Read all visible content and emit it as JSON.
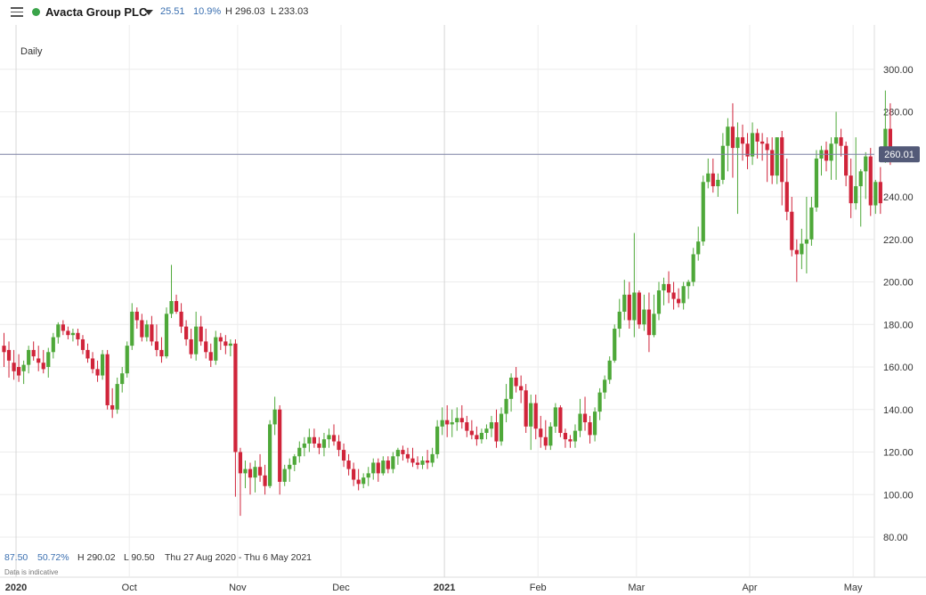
{
  "header": {
    "instrument": "Avacta Group PLC",
    "status_color": "#3aa44a",
    "change": "25.51",
    "change_pct": "10.9%",
    "high": "H 296.03",
    "low": "L 233.03"
  },
  "interval": "Daily",
  "footer": {
    "range_change": "87.50",
    "range_change_pct": "50.72%",
    "range_high": "H 290.02",
    "range_low": "L 90.50",
    "date_range": "Thu 27 Aug 2020 - Thu 6 May 2021",
    "disclaimer": "Data is indicative"
  },
  "colors": {
    "up": "#4ea839",
    "down": "#d0243a",
    "grid": "#ececec",
    "price_line": "#7f83a6",
    "price_tag": "#535a78",
    "axis_text": "#333333"
  },
  "chart_data": {
    "type": "candlestick",
    "title": "",
    "xlabel": "",
    "ylabel": "",
    "ylim": [
      70,
      307
    ],
    "y_ticks": [
      80,
      100,
      120,
      140,
      160,
      180,
      200,
      220,
      240,
      260,
      280,
      300
    ],
    "y_tick_labels": [
      "80.00",
      "100.00",
      "120.00",
      "140.00",
      "160.00",
      "180.00",
      "200.00",
      "220.00",
      "240.00",
      "260.00",
      "280.00",
      "300.00"
    ],
    "x_ticks": [
      {
        "label": "2020",
        "bold": true,
        "index": 1
      },
      {
        "label": "Oct",
        "bold": false,
        "index": 24
      },
      {
        "label": "Nov",
        "bold": false,
        "index": 46
      },
      {
        "label": "Dec",
        "bold": false,
        "index": 67
      },
      {
        "label": "2021",
        "bold": true,
        "index": 88
      },
      {
        "label": "Feb",
        "bold": false,
        "index": 107
      },
      {
        "label": "Mar",
        "bold": false,
        "index": 127
      },
      {
        "label": "Apr",
        "bold": false,
        "index": 150
      },
      {
        "label": "May",
        "bold": false,
        "index": 171
      }
    ],
    "current_price": 260.01,
    "current_price_label": "260.01",
    "candles": [
      [
        170,
        176,
        160,
        167
      ],
      [
        168,
        172,
        155,
        163
      ],
      [
        162,
        168,
        154,
        158
      ],
      [
        160,
        166,
        153,
        156
      ],
      [
        158,
        163,
        152,
        161
      ],
      [
        161,
        170,
        157,
        168
      ],
      [
        168,
        172,
        163,
        165
      ],
      [
        164,
        170,
        158,
        162
      ],
      [
        162,
        168,
        157,
        159
      ],
      [
        160,
        169,
        155,
        167
      ],
      [
        167,
        176,
        164,
        174
      ],
      [
        174,
        181,
        171,
        180
      ],
      [
        180,
        182,
        175,
        177
      ],
      [
        177,
        179,
        173,
        175
      ],
      [
        175,
        178,
        172,
        176
      ],
      [
        176,
        178,
        170,
        173
      ],
      [
        173,
        175,
        166,
        168
      ],
      [
        168,
        171,
        162,
        164
      ],
      [
        164,
        167,
        157,
        159
      ],
      [
        159,
        163,
        153,
        156
      ],
      [
        156,
        168,
        154,
        166
      ],
      [
        166,
        168,
        140,
        142
      ],
      [
        142,
        150,
        136,
        140
      ],
      [
        140,
        155,
        138,
        152
      ],
      [
        152,
        160,
        148,
        157
      ],
      [
        157,
        172,
        155,
        170
      ],
      [
        170,
        190,
        168,
        186
      ],
      [
        186,
        188,
        178,
        182
      ],
      [
        182,
        185,
        172,
        174
      ],
      [
        174,
        182,
        172,
        180
      ],
      [
        180,
        184,
        170,
        172
      ],
      [
        172,
        180,
        165,
        168
      ],
      [
        168,
        174,
        162,
        165
      ],
      [
        165,
        188,
        164,
        185
      ],
      [
        185,
        208,
        183,
        191
      ],
      [
        191,
        194,
        185,
        186
      ],
      [
        186,
        190,
        176,
        179
      ],
      [
        179,
        182,
        170,
        173
      ],
      [
        173,
        178,
        164,
        166
      ],
      [
        166,
        186,
        163,
        179
      ],
      [
        179,
        184,
        170,
        172
      ],
      [
        172,
        178,
        164,
        167
      ],
      [
        167,
        171,
        160,
        163
      ],
      [
        163,
        177,
        161,
        174
      ],
      [
        174,
        176,
        168,
        172
      ],
      [
        172,
        175,
        166,
        170
      ],
      [
        170,
        173,
        165,
        171
      ],
      [
        171,
        173,
        99,
        120
      ],
      [
        120,
        122,
        90,
        110
      ],
      [
        110,
        116,
        103,
        112
      ],
      [
        112,
        115,
        100,
        108
      ],
      [
        108,
        116,
        101,
        113
      ],
      [
        113,
        119,
        106,
        109
      ],
      [
        109,
        114,
        100,
        104
      ],
      [
        104,
        135,
        103,
        133
      ],
      [
        133,
        146,
        128,
        140
      ],
      [
        140,
        142,
        100,
        106
      ],
      [
        106,
        114,
        104,
        112
      ],
      [
        112,
        117,
        106,
        114
      ],
      [
        114,
        119,
        111,
        118
      ],
      [
        118,
        125,
        115,
        122
      ],
      [
        122,
        127,
        118,
        124
      ],
      [
        124,
        131,
        120,
        127
      ],
      [
        127,
        131,
        122,
        124
      ],
      [
        124,
        127,
        119,
        122
      ],
      [
        122,
        129,
        118,
        126
      ],
      [
        126,
        131,
        122,
        128
      ],
      [
        128,
        133,
        123,
        125
      ],
      [
        125,
        128,
        118,
        121
      ],
      [
        121,
        124,
        113,
        116
      ],
      [
        116,
        119,
        109,
        112
      ],
      [
        112,
        115,
        104,
        107
      ],
      [
        107,
        112,
        102,
        105
      ],
      [
        105,
        110,
        103,
        108
      ],
      [
        108,
        113,
        104,
        110
      ],
      [
        110,
        117,
        107,
        115
      ],
      [
        115,
        117,
        106,
        110
      ],
      [
        110,
        118,
        109,
        116
      ],
      [
        116,
        118,
        110,
        112
      ],
      [
        112,
        120,
        110,
        118
      ],
      [
        118,
        122,
        114,
        121
      ],
      [
        121,
        123,
        116,
        119
      ],
      [
        119,
        122,
        115,
        117
      ],
      [
        117,
        122,
        113,
        115
      ],
      [
        115,
        118,
        112,
        114
      ],
      [
        114,
        118,
        112,
        116
      ],
      [
        116,
        121,
        112,
        115
      ],
      [
        115,
        122,
        113,
        119
      ],
      [
        119,
        135,
        117,
        132
      ],
      [
        132,
        141,
        128,
        135
      ],
      [
        135,
        142,
        127,
        133
      ],
      [
        133,
        140,
        127,
        134
      ],
      [
        134,
        141,
        130,
        136
      ],
      [
        136,
        142,
        131,
        134
      ],
      [
        134,
        137,
        127,
        130
      ],
      [
        130,
        135,
        126,
        128
      ],
      [
        128,
        132,
        123,
        126
      ],
      [
        126,
        131,
        124,
        129
      ],
      [
        129,
        133,
        126,
        131
      ],
      [
        131,
        137,
        127,
        134
      ],
      [
        134,
        140,
        122,
        125
      ],
      [
        125,
        141,
        123,
        138
      ],
      [
        138,
        152,
        134,
        145
      ],
      [
        145,
        157,
        139,
        155
      ],
      [
        155,
        160,
        148,
        151
      ],
      [
        151,
        156,
        143,
        149
      ],
      [
        149,
        152,
        129,
        132
      ],
      [
        132,
        147,
        121,
        143
      ],
      [
        143,
        147,
        126,
        131
      ],
      [
        131,
        137,
        122,
        127
      ],
      [
        127,
        135,
        121,
        123
      ],
      [
        123,
        134,
        121,
        132
      ],
      [
        132,
        143,
        129,
        141
      ],
      [
        141,
        142,
        127,
        129
      ],
      [
        129,
        131,
        122,
        126
      ],
      [
        126,
        128,
        122,
        125
      ],
      [
        125,
        133,
        122,
        130
      ],
      [
        130,
        145,
        127,
        138
      ],
      [
        138,
        146,
        130,
        134
      ],
      [
        134,
        137,
        124,
        128
      ],
      [
        128,
        141,
        125,
        139
      ],
      [
        139,
        150,
        135,
        148
      ],
      [
        148,
        156,
        145,
        154
      ],
      [
        154,
        165,
        152,
        163
      ],
      [
        163,
        180,
        162,
        178
      ],
      [
        178,
        192,
        174,
        186
      ],
      [
        186,
        201,
        182,
        194
      ],
      [
        194,
        200,
        178,
        182
      ],
      [
        182,
        223,
        174,
        195
      ],
      [
        195,
        196,
        178,
        180
      ],
      [
        180,
        194,
        177,
        187
      ],
      [
        187,
        195,
        167,
        175
      ],
      [
        175,
        194,
        174,
        185
      ],
      [
        185,
        200,
        182,
        196
      ],
      [
        196,
        202,
        189,
        199
      ],
      [
        199,
        205,
        190,
        195
      ],
      [
        195,
        200,
        187,
        192
      ],
      [
        192,
        197,
        188,
        190
      ],
      [
        190,
        200,
        187,
        198
      ],
      [
        198,
        201,
        192,
        200
      ],
      [
        200,
        216,
        198,
        213
      ],
      [
        213,
        226,
        210,
        219
      ],
      [
        219,
        250,
        217,
        247
      ],
      [
        247,
        258,
        244,
        251
      ],
      [
        251,
        258,
        242,
        245
      ],
      [
        245,
        251,
        240,
        248
      ],
      [
        248,
        270,
        246,
        264
      ],
      [
        264,
        277,
        252,
        273
      ],
      [
        273,
        284,
        249,
        263
      ],
      [
        263,
        275,
        232,
        268
      ],
      [
        268,
        274,
        257,
        265
      ],
      [
        265,
        270,
        253,
        259
      ],
      [
        259,
        275,
        255,
        270
      ],
      [
        270,
        272,
        258,
        266
      ],
      [
        266,
        270,
        257,
        265
      ],
      [
        265,
        268,
        247,
        262
      ],
      [
        262,
        268,
        246,
        250
      ],
      [
        250,
        268,
        246,
        268
      ],
      [
        268,
        271,
        236,
        247
      ],
      [
        247,
        258,
        229,
        233
      ],
      [
        233,
        240,
        212,
        215
      ],
      [
        215,
        220,
        200,
        213
      ],
      [
        213,
        225,
        206,
        218
      ],
      [
        218,
        240,
        204,
        220
      ],
      [
        220,
        240,
        217,
        235
      ],
      [
        235,
        262,
        233,
        258
      ],
      [
        258,
        264,
        250,
        262
      ],
      [
        262,
        266,
        252,
        257
      ],
      [
        257,
        268,
        248,
        265
      ],
      [
        265,
        280,
        248,
        268
      ],
      [
        268,
        272,
        259,
        264
      ],
      [
        264,
        266,
        245,
        250
      ],
      [
        250,
        258,
        230,
        237
      ],
      [
        237,
        268,
        234,
        245
      ],
      [
        245,
        253,
        226,
        252
      ],
      [
        252,
        261,
        239,
        259
      ],
      [
        259,
        263,
        231,
        236
      ],
      [
        236,
        248,
        232,
        247
      ],
      [
        247,
        254,
        232,
        237
      ],
      [
        263,
        290,
        256,
        272
      ],
      [
        272,
        284,
        255,
        262
      ]
    ]
  }
}
